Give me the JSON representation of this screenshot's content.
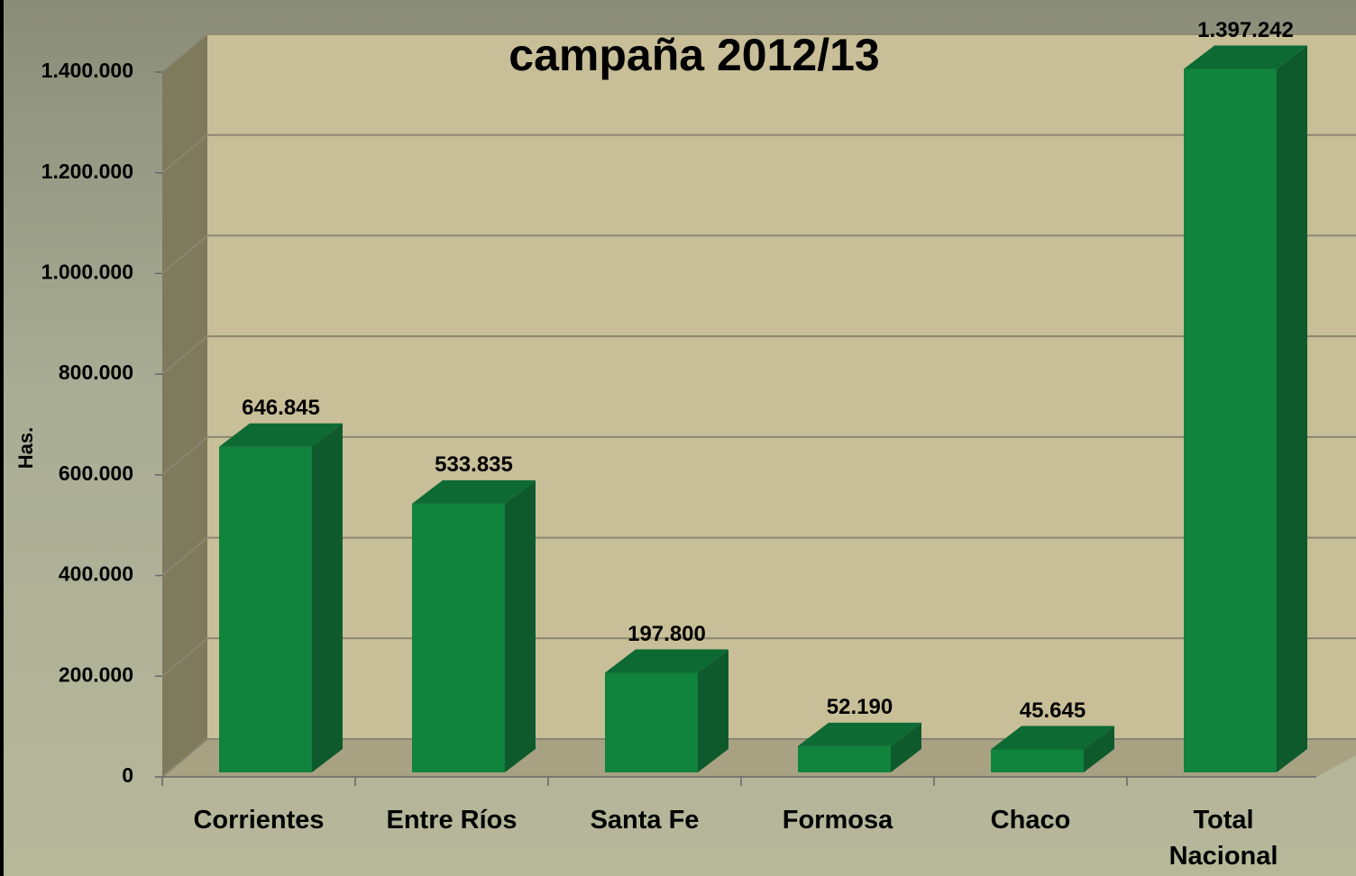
{
  "chart_data": {
    "type": "bar3d",
    "title": "campaña 2012/13",
    "ylabel": "Has.",
    "categories": [
      "Corrientes",
      "Entre Ríos",
      "Santa Fe",
      "Formosa",
      "Chaco",
      "Total Nacional"
    ],
    "values": [
      646845,
      533835,
      197800,
      52190,
      45645,
      1397242
    ],
    "value_labels": [
      "646.845",
      "533.835",
      "197.800",
      "52.190",
      "45.645",
      "1.397.242"
    ],
    "color": "#10833c",
    "ylim": [
      0,
      1400000
    ],
    "yticks": [
      0,
      {
        "value": 200000,
        "label": "200.000"
      },
      {
        "value": 400000,
        "label": "400.000"
      },
      {
        "value": 600000,
        "label": "600.000"
      },
      {
        "value": 800000,
        "label": "800.000"
      },
      {
        "value": 1000000,
        "label": "1.000.000"
      },
      {
        "value": 1200000,
        "label": "1.200.000"
      },
      {
        "value": 1400000,
        "label": "1.400.000"
      }
    ],
    "grid": true
  }
}
